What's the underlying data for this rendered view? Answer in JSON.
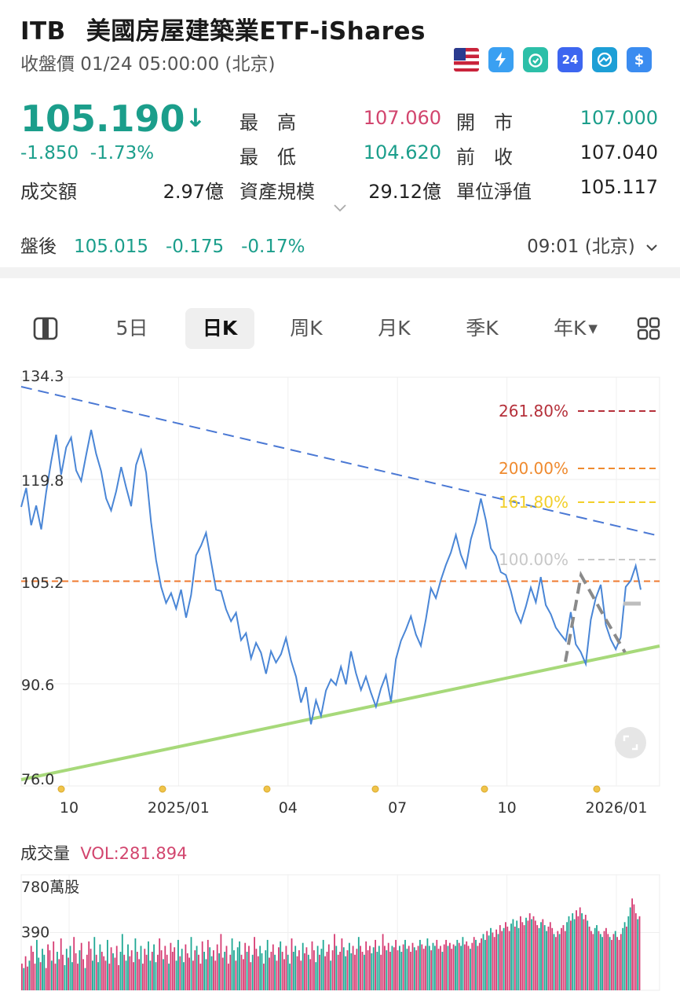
{
  "header": {
    "symbol": "ITB",
    "name": "美國房屋建築業ETF-iShares",
    "subtitle": "收盤價 01/24 05:00:00 (北京)",
    "badges": [
      "us-flag-icon",
      "lightning-icon",
      "alarm-icon",
      "24h-icon",
      "chart-icon",
      "dollar-icon"
    ],
    "badge_24": "24"
  },
  "quote": {
    "price": "105.190",
    "arrow": "↓",
    "change": "-1.850",
    "change_pct": "-1.73%",
    "stats": {
      "high_label": "最　高",
      "high": "107.060",
      "open_label": "開　市",
      "open": "107.000",
      "low_label": "最　低",
      "low": "104.620",
      "prev_label": "前　收",
      "prev": "107.040",
      "turnover_label": "成交額",
      "turnover": "2.97億",
      "aum_label": "資產規模",
      "aum": "29.12億",
      "nav_label": "單位淨值",
      "nav": "105.117"
    },
    "after_hours": {
      "label": "盤後",
      "price": "105.015",
      "change": "-0.175",
      "pct": "-0.17%",
      "time": "09:01 (北京)"
    }
  },
  "tabs": {
    "items": [
      "5日",
      "日K",
      "周K",
      "月K",
      "季K",
      "年K"
    ],
    "active": "日K"
  },
  "chart_data": {
    "type": "line",
    "y_ticks": [
      "134.3",
      "119.8",
      "105.2",
      "90.6",
      "76.0"
    ],
    "x_ticks": [
      "10",
      "2025/01",
      "04",
      "07",
      "10",
      "2026/01"
    ],
    "ylim": [
      76.0,
      134.3
    ],
    "fib_levels": [
      {
        "label": "261.80%",
        "color": "#b5303a"
      },
      {
        "label": "200.00%",
        "color": "#ef8a2e"
      },
      {
        "label": "161.80%",
        "color": "#f2cf2a"
      },
      {
        "label": "100.00%",
        "color": "#c8c8c8"
      }
    ],
    "price_line": 105.2,
    "price": [
      115.8,
      118.5,
      113.2,
      116.0,
      112.6,
      117.9,
      122.3,
      126.1,
      120.4,
      124.3,
      125.7,
      121.0,
      119.5,
      123.2,
      126.8,
      123.4,
      120.9,
      117.0,
      115.3,
      118.0,
      121.5,
      118.6,
      115.9,
      121.8,
      123.9,
      120.7,
      113.6,
      108.2,
      104.4,
      102.1,
      103.5,
      101.3,
      104.0,
      100.0,
      103.2,
      108.9,
      110.3,
      112.1,
      108.0,
      104.0,
      103.8,
      101.2,
      99.5,
      100.7,
      96.8,
      97.8,
      94.2,
      96.4,
      95.0,
      92.0,
      95.2,
      93.6,
      94.8,
      97.1,
      93.9,
      91.6,
      87.9,
      90.1,
      84.8,
      88.2,
      86.0,
      89.6,
      91.2,
      90.4,
      93.0,
      90.5,
      95.2,
      92.1,
      89.7,
      91.6,
      89.3,
      87.3,
      89.9,
      91.8,
      88.0,
      94.1,
      96.7,
      98.3,
      100.2,
      97.6,
      96.0,
      99.8,
      104.2,
      102.8,
      105.4,
      107.5,
      109.3,
      111.8,
      109.0,
      107.2,
      111.2,
      113.6,
      117.0,
      113.9,
      109.9,
      108.8,
      106.5,
      106.1,
      103.8,
      100.9,
      99.3,
      101.6,
      104.3,
      102.2,
      105.8,
      101.8,
      100.5,
      98.6,
      97.6,
      96.7,
      100.8,
      96.2,
      95.1,
      93.4,
      99.7,
      102.8,
      104.7,
      99.0,
      96.9,
      95.5,
      97.2,
      104.4,
      105.3,
      107.4,
      104.0
    ]
  },
  "volume": {
    "label": "成交量",
    "value": "VOL:281.894",
    "y_ticks": [
      "780萬股",
      "390"
    ],
    "bars": [
      180,
      150,
      230,
      160,
      200,
      300,
      260,
      180,
      340,
      220,
      190,
      280,
      240,
      150,
      310,
      270,
      200,
      330,
      180,
      260,
      210,
      350,
      240,
      170,
      280,
      220,
      300,
      190,
      360,
      250,
      180,
      270,
      320,
      210,
      150,
      240,
      330,
      280,
      200,
      360,
      240,
      190,
      310,
      260,
      230,
      200,
      340,
      180,
      290,
      250,
      220,
      300,
      170,
      260,
      380,
      240,
      200,
      310,
      230,
      270,
      190,
      350,
      260,
      210,
      300,
      180,
      280,
      240,
      330,
      200,
      260,
      310,
      190,
      240,
      350,
      270,
      210,
      300,
      240,
      180,
      320,
      260,
      290,
      200,
      340,
      230,
      280,
      190,
      310,
      250,
      220,
      360,
      200,
      270,
      300,
      240,
      180,
      330,
      260,
      210,
      340,
      290,
      230,
      270,
      200,
      310,
      250,
      380,
      220,
      260,
      300,
      180,
      240,
      350,
      270,
      200,
      290,
      330,
      240,
      210,
      320,
      260,
      300,
      190,
      240,
      360,
      280,
      230,
      300,
      250,
      180,
      270,
      340,
      220,
      260,
      310,
      240,
      200,
      290,
      330,
      260,
      210,
      300,
      240,
      180,
      350,
      260,
      300,
      230,
      270,
      200,
      320,
      250,
      290,
      240,
      210,
      330,
      270,
      190,
      300,
      240,
      280,
      340,
      230,
      260,
      310,
      200,
      270,
      380,
      300,
      240,
      260,
      350,
      290,
      230,
      270,
      320,
      250,
      300,
      240,
      280,
      360,
      300,
      260,
      240,
      330,
      270,
      300,
      250,
      290,
      340,
      260,
      300,
      240,
      380,
      300,
      270,
      320,
      260,
      300,
      290,
      340,
      270,
      300,
      260,
      310,
      340,
      280,
      300,
      260,
      320,
      290,
      270,
      300,
      340,
      310,
      280,
      300,
      350,
      300,
      270,
      320,
      300,
      340,
      280,
      300,
      260,
      310,
      340,
      300,
      320,
      280,
      310,
      300,
      340,
      320,
      300,
      360,
      310,
      330,
      300,
      280,
      320,
      360,
      340,
      300,
      320,
      350,
      380,
      340,
      400,
      370,
      420,
      390,
      360,
      410,
      380,
      440,
      400,
      420,
      460,
      430,
      400,
      450,
      480,
      430,
      470,
      420,
      500,
      460,
      440,
      490,
      470,
      520,
      480,
      500,
      470,
      440,
      420,
      460,
      480,
      440,
      400,
      430,
      460,
      420,
      380,
      360,
      400,
      380,
      420,
      440,
      400,
      460,
      500,
      470,
      520,
      480,
      540,
      500,
      560,
      520,
      480,
      510,
      470,
      430,
      400,
      380,
      420,
      440,
      400,
      380,
      360,
      400,
      420,
      380,
      360,
      340,
      380,
      400,
      360,
      340,
      380,
      420,
      460,
      430,
      500,
      560,
      620,
      580,
      520,
      480,
      500
    ]
  }
}
